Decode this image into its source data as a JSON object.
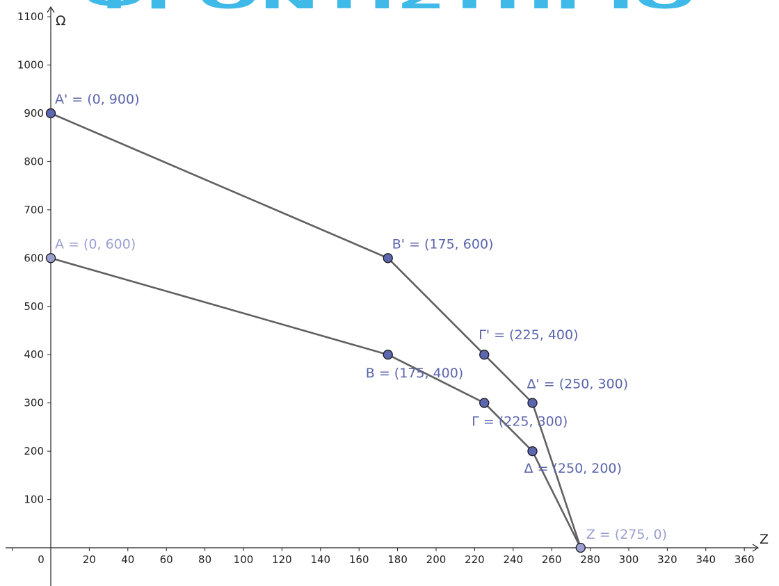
{
  "watermark": {
    "text": "ΦΡΟΝΤΙΣΤΗΡΙΟ",
    "color": "#35b6e6",
    "accent": "#5cc28e"
  },
  "chart_data": {
    "type": "line",
    "xlabel": "Z",
    "ylabel": "Ω",
    "xlim": [
      -22,
      368
    ],
    "ylim": [
      -90,
      1110
    ],
    "xticks": [
      0,
      20,
      40,
      60,
      80,
      100,
      120,
      140,
      160,
      180,
      200,
      220,
      240,
      260,
      280,
      300,
      320,
      340,
      360
    ],
    "yticks": [
      100,
      200,
      300,
      400,
      500,
      600,
      700,
      800,
      900,
      1000,
      1100
    ],
    "grid": false,
    "line_color": "#606060",
    "series": [
      {
        "point_color": "#5d66b0",
        "label_color": "#5b64ad",
        "points": [
          {
            "x": 0,
            "y": 900,
            "label": "A' = (0, 900)"
          },
          {
            "x": 175,
            "y": 600,
            "label": "B' = (175, 600)"
          },
          {
            "x": 225,
            "y": 400,
            "label": "Γ' = (225, 400)"
          },
          {
            "x": 250,
            "y": 300,
            "label": "Δ' = (250, 300)"
          },
          {
            "x": 275,
            "y": 0,
            "label": "Z = (275, 0)"
          }
        ]
      },
      {
        "point_color": "#5d66b0",
        "label_color": "#5b64ad",
        "points": [
          {
            "x": 0,
            "y": 600,
            "label": "A = (0, 600)"
          },
          {
            "x": 175,
            "y": 400,
            "label": "B = (175, 400)"
          },
          {
            "x": 225,
            "y": 300,
            "label": "Γ = (225, 300)"
          },
          {
            "x": 250,
            "y": 200,
            "label": "Δ = (250, 200)"
          },
          {
            "x": 275,
            "y": 0,
            "label": "Z = (275, 0)"
          }
        ]
      }
    ],
    "light_points": [
      {
        "x": 0,
        "y": 600,
        "color": "#9a9fd0",
        "label_color": "#9a9fd0"
      },
      {
        "x": 275,
        "y": 0,
        "color": "#9a9fd0",
        "label_color": "#9a9fd0"
      }
    ]
  }
}
